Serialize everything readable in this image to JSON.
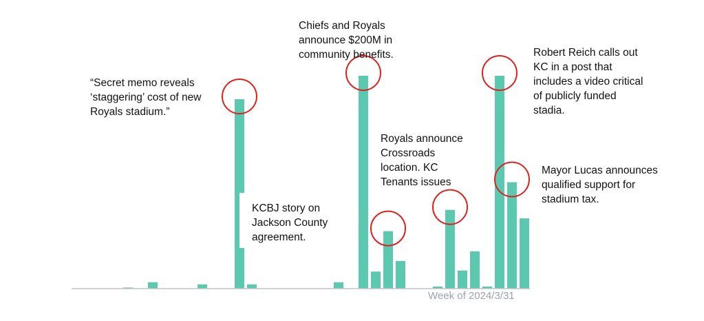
{
  "chart_data": {
    "type": "bar",
    "x_axis_label": "Week of 2024/3/31",
    "ylim": [
      0,
      100
    ],
    "bar_color": "#5cc8b0",
    "highlight_color": "#e02020",
    "axis_color": "#bfc3c8",
    "values": [
      0,
      0,
      0,
      0,
      0,
      0.5,
      0,
      3,
      0,
      0,
      0,
      2,
      0,
      0,
      89,
      2,
      0,
      0,
      0,
      0,
      0,
      0,
      3,
      0,
      100,
      8,
      27,
      13,
      0,
      0,
      1,
      37,
      8.5,
      17.5,
      1,
      100,
      50,
      33
    ],
    "highlighted_bars": [
      14,
      24,
      26,
      31,
      35,
      36
    ],
    "annotations": [
      {
        "lines": [
          "“Secret memo reveals",
          "‘staggering’ cost of new",
          "Royals stadium.”"
        ]
      },
      {
        "lines": [
          "Chiefs and Royals",
          "announce $200M in",
          "community benefits."
        ]
      },
      {
        "lines": [
          "Robert Reich calls out",
          "KC in a post that",
          "includes a video critical",
          "of publicly funded",
          "stadia."
        ]
      },
      {
        "lines": [
          "Royals announce",
          "Crossroads",
          "location. KC",
          "Tenants issues"
        ]
      },
      {
        "lines": [
          "Mayor Lucas announces",
          "qualified support for",
          "stadium tax."
        ]
      },
      {
        "lines": [
          "KCBJ story on",
          "Jackson County",
          "agreement."
        ]
      }
    ]
  }
}
